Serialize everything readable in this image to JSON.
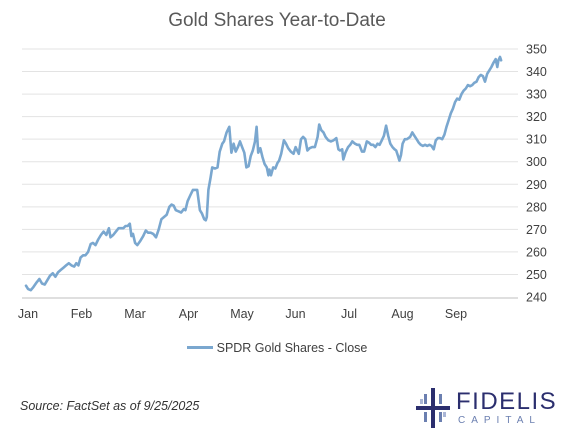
{
  "chart_data": {
    "type": "line",
    "title": "Gold Shares Year-to-Date",
    "xlabel": "",
    "ylabel": "",
    "x_ticks": [
      "Jan",
      "Feb",
      "Mar",
      "Apr",
      "May",
      "Jun",
      "Jul",
      "Aug",
      "Sep"
    ],
    "y_ticks": [
      240,
      250,
      260,
      270,
      280,
      290,
      300,
      310,
      320,
      330,
      340,
      350
    ],
    "ylim": [
      236,
      352
    ],
    "y_axis_position": "right",
    "grid": "horizontal",
    "legend_position": "bottom-center",
    "line_color": "#7aa7cf",
    "series": [
      {
        "name": "SPDR Gold Shares - Close",
        "x_unit": "month-index",
        "points": [
          [
            0.0,
            245
          ],
          [
            0.04,
            243.5
          ],
          [
            0.09,
            243
          ],
          [
            0.14,
            244.5
          ],
          [
            0.2,
            246.5
          ],
          [
            0.25,
            248
          ],
          [
            0.3,
            246
          ],
          [
            0.35,
            245.5
          ],
          [
            0.4,
            247.5
          ],
          [
            0.45,
            249.5
          ],
          [
            0.5,
            250.5
          ],
          [
            0.55,
            249
          ],
          [
            0.6,
            251
          ],
          [
            0.65,
            252
          ],
          [
            0.7,
            253
          ],
          [
            0.75,
            254
          ],
          [
            0.8,
            255
          ],
          [
            0.85,
            254
          ],
          [
            0.9,
            253.5
          ],
          [
            0.94,
            255
          ],
          [
            0.98,
            254
          ],
          [
            1.02,
            257.5
          ],
          [
            1.07,
            258.5
          ],
          [
            1.11,
            258.5
          ],
          [
            1.16,
            260
          ],
          [
            1.21,
            263.5
          ],
          [
            1.25,
            264
          ],
          [
            1.3,
            263
          ],
          [
            1.35,
            265.5
          ],
          [
            1.4,
            267.5
          ],
          [
            1.45,
            269
          ],
          [
            1.5,
            267.5
          ],
          [
            1.55,
            270.5
          ],
          [
            1.58,
            266.5
          ],
          [
            1.63,
            267.5
          ],
          [
            1.68,
            269
          ],
          [
            1.73,
            270.5
          ],
          [
            1.78,
            270.5
          ],
          [
            1.82,
            270.5
          ],
          [
            1.86,
            271.5
          ],
          [
            1.9,
            271.5
          ],
          [
            1.94,
            272.5
          ],
          [
            1.97,
            267
          ],
          [
            2.0,
            268
          ],
          [
            2.04,
            264
          ],
          [
            2.08,
            263
          ],
          [
            2.14,
            265
          ],
          [
            2.19,
            267
          ],
          [
            2.24,
            269.5
          ],
          [
            2.28,
            268.5
          ],
          [
            2.33,
            268.5
          ],
          [
            2.38,
            268
          ],
          [
            2.43,
            266.5
          ],
          [
            2.48,
            270
          ],
          [
            2.53,
            274.5
          ],
          [
            2.58,
            275.5
          ],
          [
            2.63,
            276.5
          ],
          [
            2.68,
            280
          ],
          [
            2.72,
            281
          ],
          [
            2.76,
            280.5
          ],
          [
            2.8,
            278.5
          ],
          [
            2.85,
            278
          ],
          [
            2.9,
            277.5
          ],
          [
            2.95,
            279
          ],
          [
            2.98,
            278.5
          ],
          [
            3.02,
            282.5
          ],
          [
            3.07,
            285
          ],
          [
            3.12,
            287.5
          ],
          [
            3.16,
            287.5
          ],
          [
            3.2,
            287.5
          ],
          [
            3.25,
            278.5
          ],
          [
            3.29,
            277
          ],
          [
            3.33,
            274.5
          ],
          [
            3.36,
            274
          ],
          [
            3.38,
            275.5
          ],
          [
            3.41,
            287.5
          ],
          [
            3.45,
            293
          ],
          [
            3.48,
            297.5
          ],
          [
            3.53,
            297
          ],
          [
            3.58,
            297.5
          ],
          [
            3.62,
            304.5
          ],
          [
            3.67,
            308
          ],
          [
            3.7,
            309
          ],
          [
            3.75,
            313
          ],
          [
            3.8,
            315.5
          ],
          [
            3.84,
            304
          ],
          [
            3.88,
            308
          ],
          [
            3.92,
            304.5
          ],
          [
            3.96,
            306.5
          ],
          [
            4.0,
            309
          ],
          [
            4.04,
            306.5
          ],
          [
            4.08,
            304
          ],
          [
            4.12,
            297.5
          ],
          [
            4.16,
            298
          ],
          [
            4.2,
            302.5
          ],
          [
            4.24,
            305
          ],
          [
            4.28,
            309
          ],
          [
            4.31,
            315.5
          ],
          [
            4.34,
            304
          ],
          [
            4.38,
            306
          ],
          [
            4.42,
            302
          ],
          [
            4.46,
            299
          ],
          [
            4.5,
            297.5
          ],
          [
            4.53,
            294
          ],
          [
            4.55,
            296.5
          ],
          [
            4.58,
            294
          ],
          [
            4.62,
            297.5
          ],
          [
            4.66,
            297
          ],
          [
            4.7,
            299.5
          ],
          [
            4.73,
            300.5
          ],
          [
            4.77,
            303.5
          ],
          [
            4.82,
            309.5
          ],
          [
            4.86,
            308
          ],
          [
            4.9,
            306
          ],
          [
            4.95,
            304.5
          ],
          [
            5.0,
            303.5
          ],
          [
            5.04,
            306.5
          ],
          [
            5.07,
            305
          ],
          [
            5.1,
            303.5
          ],
          [
            5.14,
            310
          ],
          [
            5.18,
            311
          ],
          [
            5.22,
            310
          ],
          [
            5.26,
            305
          ],
          [
            5.3,
            306
          ],
          [
            5.35,
            306.5
          ],
          [
            5.4,
            306.5
          ],
          [
            5.45,
            311
          ],
          [
            5.48,
            316.5
          ],
          [
            5.52,
            314
          ],
          [
            5.56,
            313
          ],
          [
            5.6,
            311
          ],
          [
            5.65,
            309.5
          ],
          [
            5.7,
            309
          ],
          [
            5.75,
            309.5
          ],
          [
            5.8,
            310.5
          ],
          [
            5.84,
            305.5
          ],
          [
            5.87,
            305
          ],
          [
            5.91,
            305.5
          ],
          [
            5.93,
            301
          ],
          [
            5.97,
            304
          ],
          [
            6.02,
            306.5
          ],
          [
            6.06,
            307.5
          ],
          [
            6.1,
            309
          ],
          [
            6.15,
            308
          ],
          [
            6.19,
            307.5
          ],
          [
            6.23,
            307.5
          ],
          [
            6.28,
            304.5
          ],
          [
            6.32,
            304.5
          ],
          [
            6.37,
            309
          ],
          [
            6.41,
            308.5
          ],
          [
            6.45,
            307.5
          ],
          [
            6.49,
            307.5
          ],
          [
            6.53,
            306.5
          ],
          [
            6.57,
            308
          ],
          [
            6.61,
            307.5
          ],
          [
            6.65,
            309.5
          ],
          [
            6.69,
            311.5
          ],
          [
            6.73,
            316
          ],
          [
            6.77,
            311.5
          ],
          [
            6.81,
            308
          ],
          [
            6.85,
            306.5
          ],
          [
            6.89,
            305.5
          ],
          [
            6.92,
            305
          ],
          [
            6.96,
            302
          ],
          [
            6.98,
            300.5
          ],
          [
            7.01,
            303
          ],
          [
            7.04,
            308
          ],
          [
            7.08,
            310
          ],
          [
            7.12,
            310
          ],
          [
            7.15,
            310.5
          ],
          [
            7.18,
            311
          ],
          [
            7.22,
            313
          ],
          [
            7.26,
            311.5
          ],
          [
            7.3,
            310
          ],
          [
            7.34,
            308.5
          ],
          [
            7.38,
            307.5
          ],
          [
            7.42,
            307
          ],
          [
            7.46,
            307.5
          ],
          [
            7.5,
            307
          ],
          [
            7.54,
            307.5
          ],
          [
            7.58,
            307
          ],
          [
            7.62,
            305.5
          ],
          [
            7.66,
            309.5
          ],
          [
            7.7,
            310.5
          ],
          [
            7.74,
            310.5
          ],
          [
            7.78,
            310
          ],
          [
            7.82,
            312
          ],
          [
            7.86,
            315.5
          ],
          [
            7.9,
            318.5
          ],
          [
            7.94,
            321.5
          ],
          [
            7.98,
            323.5
          ],
          [
            8.02,
            326.5
          ],
          [
            8.06,
            328
          ],
          [
            8.1,
            327.5
          ],
          [
            8.14,
            330
          ],
          [
            8.18,
            331.5
          ],
          [
            8.22,
            332.5
          ],
          [
            8.26,
            334
          ],
          [
            8.3,
            333.5
          ],
          [
            8.34,
            334
          ],
          [
            8.38,
            335
          ],
          [
            8.42,
            335.5
          ],
          [
            8.46,
            337.5
          ],
          [
            8.5,
            338.5
          ],
          [
            8.54,
            338
          ],
          [
            8.58,
            335.5
          ],
          [
            8.62,
            339
          ],
          [
            8.66,
            340.5
          ],
          [
            8.7,
            342
          ],
          [
            8.74,
            344
          ],
          [
            8.78,
            345.5
          ],
          [
            8.81,
            342
          ],
          [
            8.83,
            345
          ],
          [
            8.86,
            346.5
          ],
          [
            8.88,
            345
          ]
        ]
      }
    ]
  },
  "source_text": "Source: FactSet as of 9/25/2025",
  "logo": {
    "name": "FIDELIS",
    "sub": "CAPITAL"
  }
}
